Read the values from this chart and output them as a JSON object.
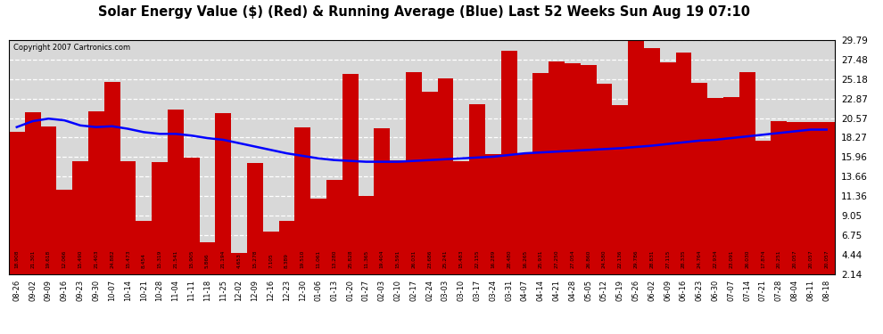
{
  "title": "Solar Energy Value ($) (Red) & Running Average (Blue) Last 52 Weeks Sun Aug 19 07:10",
  "copyright": "Copyright 2007 Cartronics.com",
  "bar_color": "#cc0000",
  "line_color": "#0000ff",
  "bg_color": "#ffffff",
  "plot_bg_color": "#d8d8d8",
  "grid_color": "#ffffff",
  "yticks": [
    2.14,
    4.44,
    6.75,
    9.05,
    11.36,
    13.66,
    15.96,
    18.27,
    20.57,
    22.87,
    25.18,
    27.48,
    29.79
  ],
  "ylim": [
    2.14,
    29.79
  ],
  "categories": [
    "08-26",
    "09-02",
    "09-09",
    "09-16",
    "09-23",
    "09-30",
    "10-07",
    "10-14",
    "10-21",
    "10-28",
    "11-04",
    "11-11",
    "11-18",
    "11-25",
    "12-02",
    "12-09",
    "12-16",
    "12-23",
    "12-30",
    "01-06",
    "01-13",
    "01-20",
    "01-27",
    "02-03",
    "02-10",
    "02-17",
    "02-24",
    "03-03",
    "03-10",
    "03-17",
    "03-24",
    "03-31",
    "04-07",
    "04-14",
    "04-21",
    "04-28",
    "05-05",
    "05-12",
    "05-19",
    "05-26",
    "06-02",
    "06-09",
    "06-16",
    "06-23",
    "06-30",
    "07-07",
    "07-14",
    "07-21",
    "07-28",
    "08-04",
    "08-11",
    "08-18"
  ],
  "values": [
    18.908,
    21.301,
    19.618,
    12.066,
    15.49,
    21.403,
    24.882,
    15.473,
    8.454,
    15.319,
    21.541,
    15.905,
    5.866,
    21.194,
    4.653,
    15.278,
    7.105,
    8.389,
    19.51,
    11.061,
    13.28,
    25.828,
    11.365,
    19.404,
    15.591,
    26.031,
    23.686,
    25.241,
    15.483,
    22.155,
    16.289,
    28.48,
    16.265,
    25.931,
    27.25,
    27.054,
    26.86,
    24.58,
    22.136,
    29.786,
    28.831,
    27.115,
    28.335,
    24.764,
    22.934,
    23.091,
    26.03,
    17.874,
    20.251,
    20.057,
    20.057,
    20.057
  ],
  "avg_values": [
    19.5,
    20.2,
    20.5,
    20.3,
    19.7,
    19.5,
    19.6,
    19.3,
    18.9,
    18.7,
    18.7,
    18.5,
    18.2,
    18.0,
    17.6,
    17.2,
    16.8,
    16.4,
    16.1,
    15.8,
    15.6,
    15.5,
    15.4,
    15.4,
    15.4,
    15.5,
    15.6,
    15.7,
    15.8,
    15.9,
    16.0,
    16.2,
    16.4,
    16.5,
    16.6,
    16.7,
    16.8,
    16.9,
    17.0,
    17.15,
    17.3,
    17.5,
    17.7,
    17.9,
    18.0,
    18.2,
    18.4,
    18.6,
    18.8,
    19.0,
    19.2,
    19.2
  ]
}
